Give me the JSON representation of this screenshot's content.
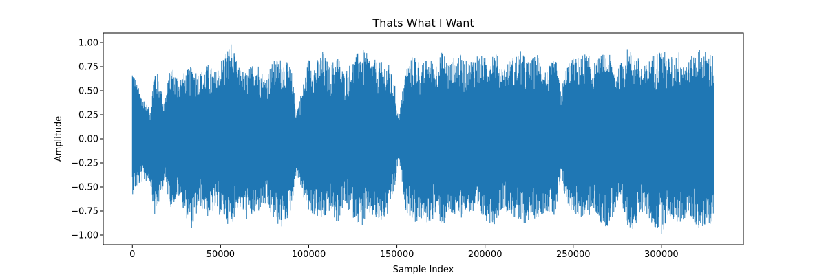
{
  "chart_data": {
    "type": "line",
    "title": "Thats What I Want",
    "xlabel": "Sample Index",
    "ylabel": "Amplitude",
    "xlim": [
      -16500,
      346500
    ],
    "ylim": [
      -1.1,
      1.1
    ],
    "xticks": [
      0,
      50000,
      100000,
      150000,
      200000,
      250000,
      300000
    ],
    "yticks": [
      -1.0,
      -0.75,
      -0.5,
      -0.25,
      0.0,
      0.25,
      0.5,
      0.75,
      1.0
    ],
    "xtick_labels": [
      "0",
      "50000",
      "100000",
      "150000",
      "200000",
      "250000",
      "300000"
    ],
    "ytick_labels": [
      "−1.00",
      "−0.75",
      "−0.50",
      "−0.25",
      "0.00",
      "0.25",
      "0.50",
      "0.75",
      "1.00"
    ],
    "grid": false,
    "series": [
      {
        "color": "#1f77b4",
        "x_start": 0,
        "x_end": 330000,
        "envelope": {
          "x": [
            0,
            3000,
            6000,
            10000,
            13000,
            18000,
            22000,
            26000,
            30000,
            34000,
            38000,
            43000,
            47000,
            52000,
            56000,
            60000,
            65000,
            70000,
            75000,
            80000,
            85000,
            90000,
            93000,
            96000,
            100000,
            104000,
            108000,
            112000,
            116000,
            120000,
            125000,
            130000,
            135000,
            140000,
            145000,
            149000,
            151000,
            155000,
            160000,
            164000,
            168000,
            172000,
            176000,
            180000,
            185000,
            190000,
            195000,
            200000,
            205000,
            210000,
            215000,
            220000,
            225000,
            230000,
            235000,
            240000,
            243000,
            247000,
            252000,
            257000,
            262000,
            266000,
            270000,
            275000,
            280000,
            285000,
            290000,
            295000,
            300000,
            305000,
            310000,
            315000,
            320000,
            325000,
            330000
          ],
          "max": [
            0.78,
            0.55,
            0.45,
            0.3,
            0.78,
            0.4,
            0.78,
            0.65,
            0.7,
            0.77,
            0.7,
            0.78,
            0.7,
            0.9,
            1.01,
            0.75,
            0.7,
            0.85,
            0.65,
            0.82,
            0.85,
            0.75,
            0.3,
            0.5,
            0.85,
            0.8,
            0.92,
            0.75,
            0.9,
            0.7,
            0.83,
            0.95,
            0.85,
            0.8,
            0.8,
            0.55,
            0.2,
            0.75,
            0.9,
            0.78,
            0.85,
            0.8,
            0.92,
            0.8,
            0.9,
            0.8,
            0.9,
            0.85,
            0.95,
            0.75,
            0.85,
            0.92,
            0.8,
            0.9,
            0.72,
            0.85,
            0.5,
            0.82,
            0.85,
            0.9,
            0.8,
            0.88,
            0.9,
            0.7,
            0.95,
            0.9,
            0.75,
            0.88,
            0.95,
            0.85,
            0.92,
            0.8,
            0.95,
            0.92,
            0.9
          ],
          "min": [
            -0.58,
            -0.5,
            -0.45,
            -0.45,
            -0.85,
            -0.45,
            -0.72,
            -0.6,
            -0.8,
            -0.95,
            -0.7,
            -0.82,
            -0.75,
            -0.85,
            -0.92,
            -0.7,
            -0.85,
            -0.8,
            -0.7,
            -0.85,
            -0.95,
            -0.75,
            -0.35,
            -0.55,
            -0.8,
            -0.8,
            -0.88,
            -0.75,
            -0.9,
            -0.7,
            -0.82,
            -0.92,
            -0.8,
            -0.9,
            -0.8,
            -0.5,
            -0.2,
            -0.75,
            -0.88,
            -0.85,
            -0.9,
            -0.8,
            -0.92,
            -0.8,
            -0.85,
            -0.75,
            -0.82,
            -0.85,
            -0.9,
            -0.72,
            -0.8,
            -0.92,
            -0.85,
            -0.82,
            -0.75,
            -0.85,
            -0.45,
            -0.72,
            -0.8,
            -0.85,
            -0.75,
            -0.9,
            -0.92,
            -0.7,
            -0.9,
            -0.95,
            -0.75,
            -0.92,
            -0.99,
            -0.82,
            -0.9,
            -0.8,
            -0.92,
            -0.95,
            -0.85
          ]
        }
      }
    ]
  }
}
